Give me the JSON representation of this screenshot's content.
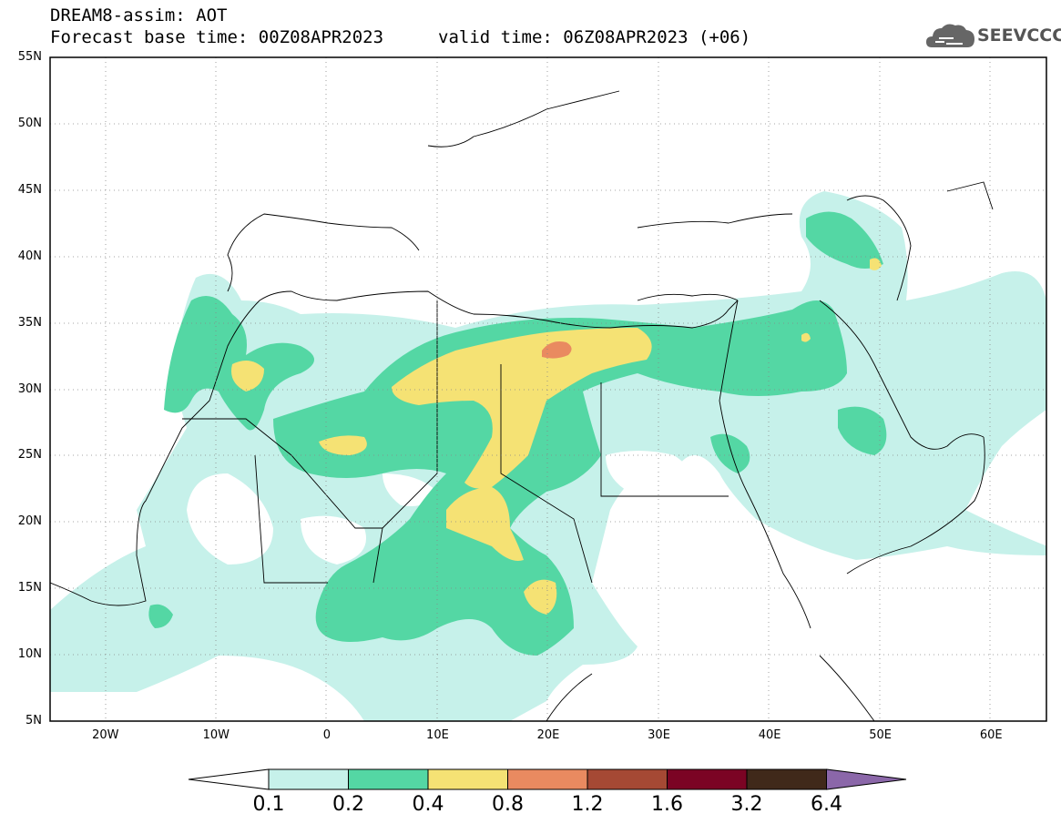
{
  "header": {
    "line1": "DREAM8-assim: AOT",
    "line2a": "Forecast base time: 00Z08APR2023",
    "line2b": "valid time: 06Z08APR2023 (+06)"
  },
  "logo": {
    "text": "SEEVCCC",
    "icon": "cloud-icon"
  },
  "map": {
    "lon_range": [
      -25,
      65
    ],
    "lat_range": [
      5,
      55
    ],
    "lat_labels": [
      "55N",
      "50N",
      "45N",
      "40N",
      "35N",
      "30N",
      "25N",
      "20N",
      "15N",
      "10N",
      "5N"
    ],
    "lat_values": [
      55,
      50,
      45,
      40,
      35,
      30,
      25,
      20,
      15,
      10,
      5
    ],
    "lon_labels": [
      "20W",
      "10W",
      "0",
      "10E",
      "20E",
      "30E",
      "40E",
      "50E",
      "60E"
    ],
    "lon_values": [
      -20,
      -10,
      0,
      10,
      20,
      30,
      40,
      50,
      60
    ]
  },
  "colorbar": {
    "labels": [
      "0.1",
      "0.2",
      "0.4",
      "0.8",
      "1.2",
      "1.6",
      "3.2",
      "6.4"
    ],
    "colors": [
      "#ffffff",
      "#c6f1ea",
      "#54d7a4",
      "#f5e274",
      "#e98a60",
      "#a54934",
      "#7b0424",
      "#40291a",
      "#8b67a9"
    ]
  },
  "colors": {
    "aot_01": "#c6f1ea",
    "aot_02": "#54d7a4",
    "aot_04": "#f5e274",
    "aot_08": "#e98a60"
  }
}
